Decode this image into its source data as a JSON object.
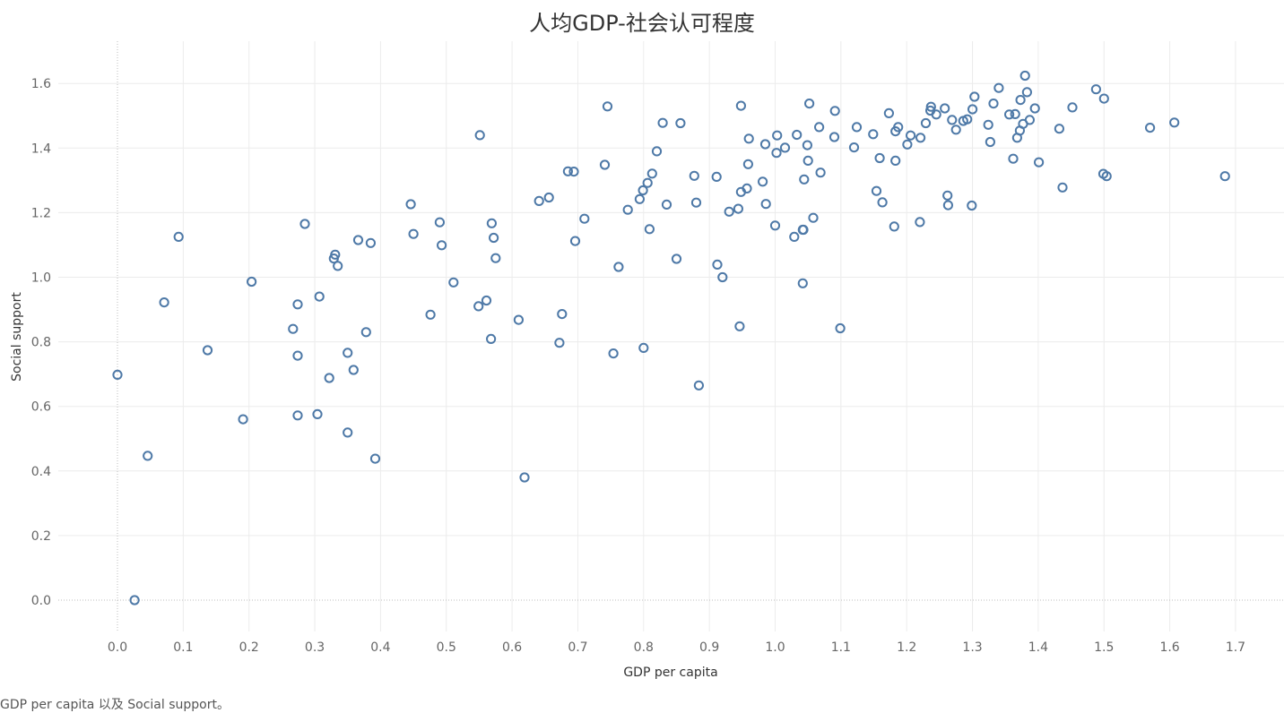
{
  "caption": "GDP per capita 以及 Social support。",
  "chart_data": {
    "type": "scatter",
    "title": "人均GDP-社会认可程度",
    "xlabel": "GDP per capita",
    "ylabel": "Social support",
    "xlim": [
      -0.09,
      1.77
    ],
    "ylim": [
      -0.09,
      1.72
    ],
    "xticks": [
      "0.0",
      "0.1",
      "0.2",
      "0.3",
      "0.4",
      "0.5",
      "0.6",
      "0.7",
      "0.8",
      "0.9",
      "1.0",
      "1.1",
      "1.2",
      "1.3",
      "1.4",
      "1.5",
      "1.6",
      "1.7"
    ],
    "yticks": [
      "0.0",
      "0.2",
      "0.4",
      "0.6",
      "0.8",
      "1.0",
      "1.2",
      "1.4",
      "1.6"
    ],
    "grid": true,
    "zero_lines": "dotted",
    "marker_color": "#4e79a7",
    "points": [
      [
        0.0,
        0.698
      ],
      [
        0.026,
        0.0
      ],
      [
        0.046,
        0.447
      ],
      [
        0.071,
        0.922
      ],
      [
        0.093,
        1.125
      ],
      [
        0.137,
        0.774
      ],
      [
        0.191,
        0.56
      ],
      [
        0.204,
        0.986
      ],
      [
        0.267,
        0.84
      ],
      [
        0.274,
        0.916
      ],
      [
        0.274,
        0.757
      ],
      [
        0.274,
        0.572
      ],
      [
        0.285,
        1.165
      ],
      [
        0.304,
        0.576
      ],
      [
        0.307,
        0.94
      ],
      [
        0.322,
        0.688
      ],
      [
        0.329,
        1.058
      ],
      [
        0.331,
        1.07
      ],
      [
        0.335,
        1.035
      ],
      [
        0.35,
        0.766
      ],
      [
        0.35,
        0.519
      ],
      [
        0.359,
        0.713
      ],
      [
        0.366,
        1.115
      ],
      [
        0.378,
        0.83
      ],
      [
        0.385,
        1.106
      ],
      [
        0.392,
        0.438
      ],
      [
        0.446,
        1.226
      ],
      [
        0.45,
        1.134
      ],
      [
        0.476,
        0.884
      ],
      [
        0.49,
        1.17
      ],
      [
        0.493,
        1.099
      ],
      [
        0.511,
        0.984
      ],
      [
        0.549,
        0.91
      ],
      [
        0.551,
        1.44
      ],
      [
        0.561,
        0.928
      ],
      [
        0.568,
        0.809
      ],
      [
        0.569,
        1.167
      ],
      [
        0.572,
        1.122
      ],
      [
        0.575,
        1.059
      ],
      [
        0.61,
        0.868
      ],
      [
        0.619,
        0.38
      ],
      [
        0.641,
        1.236
      ],
      [
        0.656,
        1.247
      ],
      [
        0.672,
        0.797
      ],
      [
        0.676,
        0.886
      ],
      [
        0.685,
        1.328
      ],
      [
        0.694,
        1.327
      ],
      [
        0.696,
        1.112
      ],
      [
        0.71,
        1.181
      ],
      [
        0.741,
        1.348
      ],
      [
        0.745,
        1.529
      ],
      [
        0.754,
        0.764
      ],
      [
        0.762,
        1.032
      ],
      [
        0.776,
        1.209
      ],
      [
        0.794,
        1.242
      ],
      [
        0.799,
        1.269
      ],
      [
        0.8,
        0.781
      ],
      [
        0.806,
        1.292
      ],
      [
        0.809,
        1.149
      ],
      [
        0.813,
        1.321
      ],
      [
        0.82,
        1.39
      ],
      [
        0.829,
        1.478
      ],
      [
        0.835,
        1.225
      ],
      [
        0.85,
        1.057
      ],
      [
        0.856,
        1.477
      ],
      [
        0.877,
        1.314
      ],
      [
        0.88,
        1.231
      ],
      [
        0.884,
        0.665
      ],
      [
        0.911,
        1.311
      ],
      [
        0.912,
        1.039
      ],
      [
        0.92,
        1.0
      ],
      [
        0.93,
        1.203
      ],
      [
        0.944,
        1.212
      ],
      [
        0.946,
        0.848
      ],
      [
        0.948,
        1.264
      ],
      [
        0.948,
        1.531
      ],
      [
        0.957,
        1.275
      ],
      [
        0.959,
        1.35
      ],
      [
        0.96,
        1.429
      ],
      [
        0.981,
        1.296
      ],
      [
        0.985,
        1.412
      ],
      [
        0.986,
        1.227
      ],
      [
        1.0,
        1.16
      ],
      [
        1.002,
        1.385
      ],
      [
        1.003,
        1.439
      ],
      [
        1.015,
        1.401
      ],
      [
        1.029,
        1.125
      ],
      [
        1.033,
        1.441
      ],
      [
        1.042,
        1.147
      ],
      [
        1.043,
        1.147
      ],
      [
        1.042,
        0.981
      ],
      [
        1.044,
        1.303
      ],
      [
        1.049,
        1.409
      ],
      [
        1.05,
        1.361
      ],
      [
        1.052,
        1.538
      ],
      [
        1.058,
        1.184
      ],
      [
        1.067,
        1.465
      ],
      [
        1.069,
        1.324
      ],
      [
        1.09,
        1.434
      ],
      [
        1.091,
        1.515
      ],
      [
        1.099,
        0.842
      ],
      [
        1.12,
        1.402
      ],
      [
        1.124,
        1.465
      ],
      [
        1.149,
        1.443
      ],
      [
        1.154,
        1.267
      ],
      [
        1.159,
        1.369
      ],
      [
        1.163,
        1.232
      ],
      [
        1.173,
        1.508
      ],
      [
        1.181,
        1.157
      ],
      [
        1.183,
        1.452
      ],
      [
        1.183,
        1.361
      ],
      [
        1.187,
        1.465
      ],
      [
        1.201,
        1.411
      ],
      [
        1.206,
        1.439
      ],
      [
        1.22,
        1.171
      ],
      [
        1.221,
        1.432
      ],
      [
        1.229,
        1.477
      ],
      [
        1.236,
        1.516
      ],
      [
        1.237,
        1.528
      ],
      [
        1.245,
        1.504
      ],
      [
        1.258,
        1.523
      ],
      [
        1.262,
        1.253
      ],
      [
        1.263,
        1.223
      ],
      [
        1.269,
        1.487
      ],
      [
        1.275,
        1.457
      ],
      [
        1.286,
        1.484
      ],
      [
        1.292,
        1.489
      ],
      [
        1.299,
        1.222
      ],
      [
        1.3,
        1.52
      ],
      [
        1.303,
        1.559
      ],
      [
        1.324,
        1.472
      ],
      [
        1.327,
        1.419
      ],
      [
        1.332,
        1.538
      ],
      [
        1.34,
        1.586
      ],
      [
        1.356,
        1.504
      ],
      [
        1.362,
        1.367
      ],
      [
        1.365,
        1.505
      ],
      [
        1.368,
        1.432
      ],
      [
        1.372,
        1.454
      ],
      [
        1.373,
        1.549
      ],
      [
        1.377,
        1.475
      ],
      [
        1.38,
        1.624
      ],
      [
        1.383,
        1.573
      ],
      [
        1.387,
        1.487
      ],
      [
        1.395,
        1.523
      ],
      [
        1.401,
        1.356
      ],
      [
        1.432,
        1.46
      ],
      [
        1.437,
        1.278
      ],
      [
        1.452,
        1.526
      ],
      [
        1.488,
        1.582
      ],
      [
        1.499,
        1.32
      ],
      [
        1.5,
        1.553
      ],
      [
        1.504,
        1.313
      ],
      [
        1.57,
        1.463
      ],
      [
        1.607,
        1.479
      ],
      [
        1.684,
        1.313
      ]
    ]
  }
}
